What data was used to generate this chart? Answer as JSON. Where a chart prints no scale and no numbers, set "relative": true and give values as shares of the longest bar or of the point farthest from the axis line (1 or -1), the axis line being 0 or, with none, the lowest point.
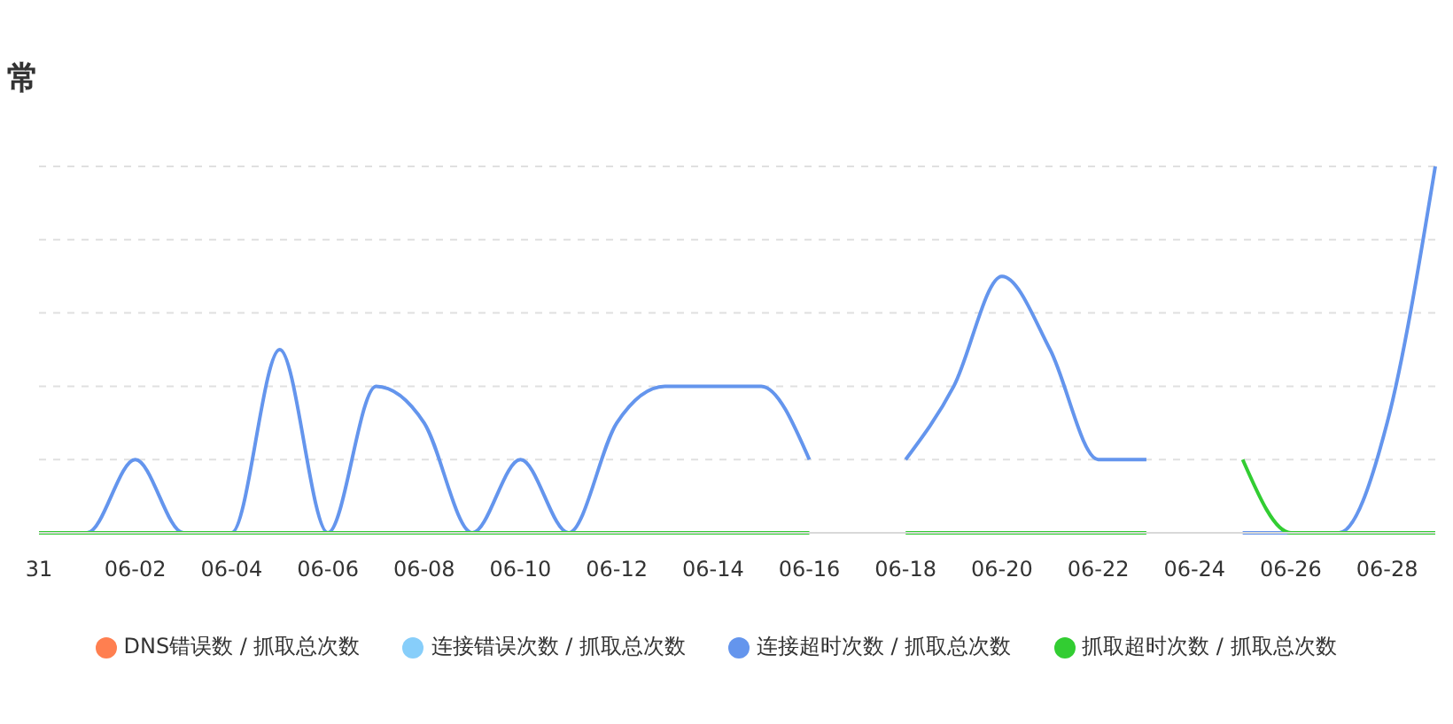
{
  "chart_data": {
    "type": "line",
    "title": "常",
    "categories": [
      "31",
      null,
      "06-02",
      null,
      "06-04",
      null,
      "06-06",
      null,
      "06-08",
      null,
      "06-10",
      null,
      "06-12",
      null,
      "06-14",
      null,
      "06-16",
      null,
      "06-18",
      null,
      "06-20",
      null,
      "06-22",
      null,
      "06-24",
      null,
      "06-26",
      null,
      "06-28",
      null
    ],
    "relative": true,
    "series": [
      {
        "name": "DNS错误数 / 抓取总次数",
        "color": "#ff7f50",
        "values": [
          null,
          null,
          null,
          null,
          null,
          null,
          null,
          null,
          null,
          null,
          null,
          null,
          null,
          null,
          null,
          null,
          null,
          null,
          null,
          null,
          null,
          null,
          null,
          null,
          null,
          null,
          null,
          null,
          null,
          null
        ]
      },
      {
        "name": "连接错误次数 / 抓取总次数",
        "color": "#87cefa",
        "values": [
          null,
          null,
          null,
          null,
          null,
          null,
          null,
          null,
          null,
          null,
          null,
          null,
          null,
          null,
          null,
          null,
          null,
          null,
          null,
          null,
          null,
          null,
          null,
          null,
          null,
          null,
          null,
          null,
          null,
          null
        ]
      },
      {
        "name": "连接超时次数 / 抓取总次数",
        "color": "#6495ed",
        "values": [
          0,
          0,
          0.2,
          0,
          0,
          0.5,
          0,
          0.4,
          0.3,
          0,
          0.2,
          0,
          0.3,
          0.4,
          0.4,
          0.4,
          0.2,
          null,
          0.2,
          0.4,
          0.7,
          0.5,
          0.2,
          0.2,
          null,
          0,
          0,
          0,
          0.3,
          1
        ]
      },
      {
        "name": "抓取超时次数 / 抓取总次数",
        "color": "#32cd32",
        "values": [
          0,
          0,
          0,
          0,
          0,
          0,
          0,
          0,
          0,
          0,
          0,
          0,
          0,
          0,
          0,
          0,
          0,
          null,
          0,
          0,
          0,
          0,
          0,
          0,
          null,
          0.2,
          0,
          0,
          0,
          0
        ]
      }
    ],
    "grid": "y",
    "legend": "bottom",
    "marker": "none",
    "line_style": "solid"
  }
}
